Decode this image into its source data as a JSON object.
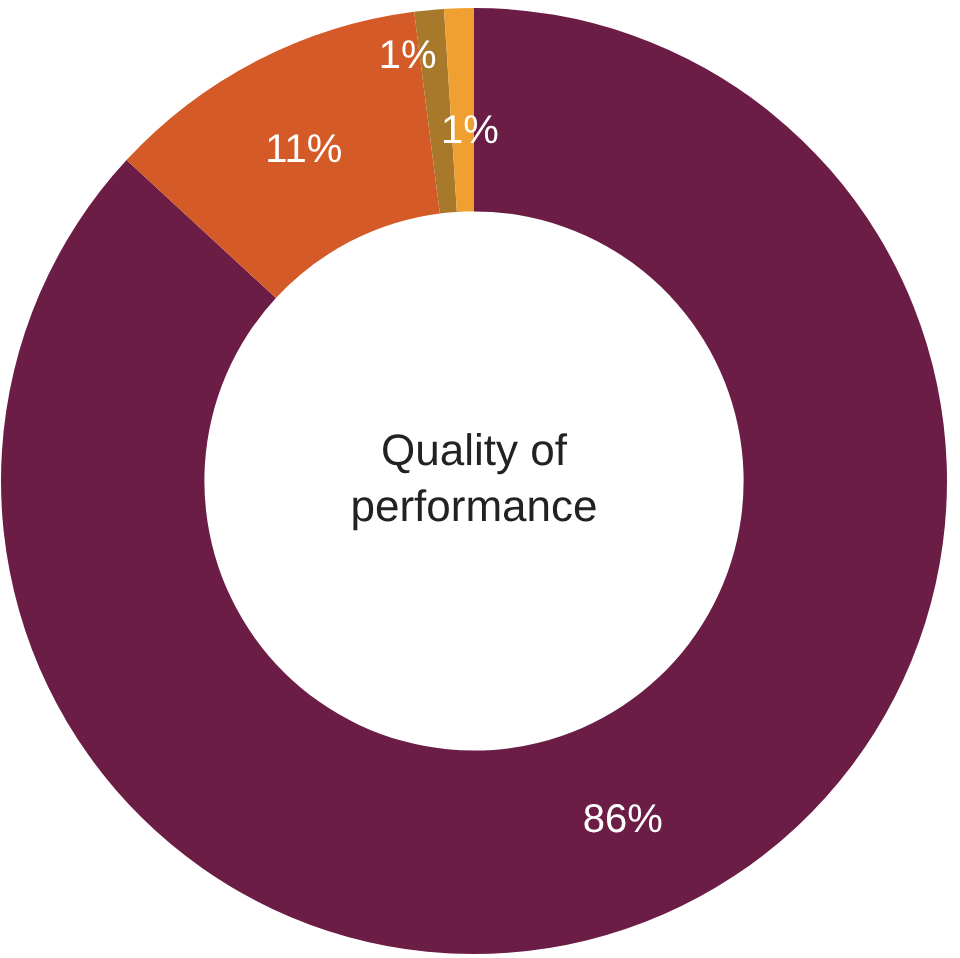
{
  "chart_data": {
    "type": "donut",
    "title": "Quality of performance",
    "categories": [
      null,
      null,
      null,
      null
    ],
    "values": [
      86,
      11,
      1,
      1
    ],
    "colors": [
      "#6b1d45",
      "#d45a27",
      "#a8792a",
      "#f0a030"
    ],
    "value_labels": [
      "86%",
      "11%",
      "1%",
      "1%"
    ],
    "legend": false
  }
}
